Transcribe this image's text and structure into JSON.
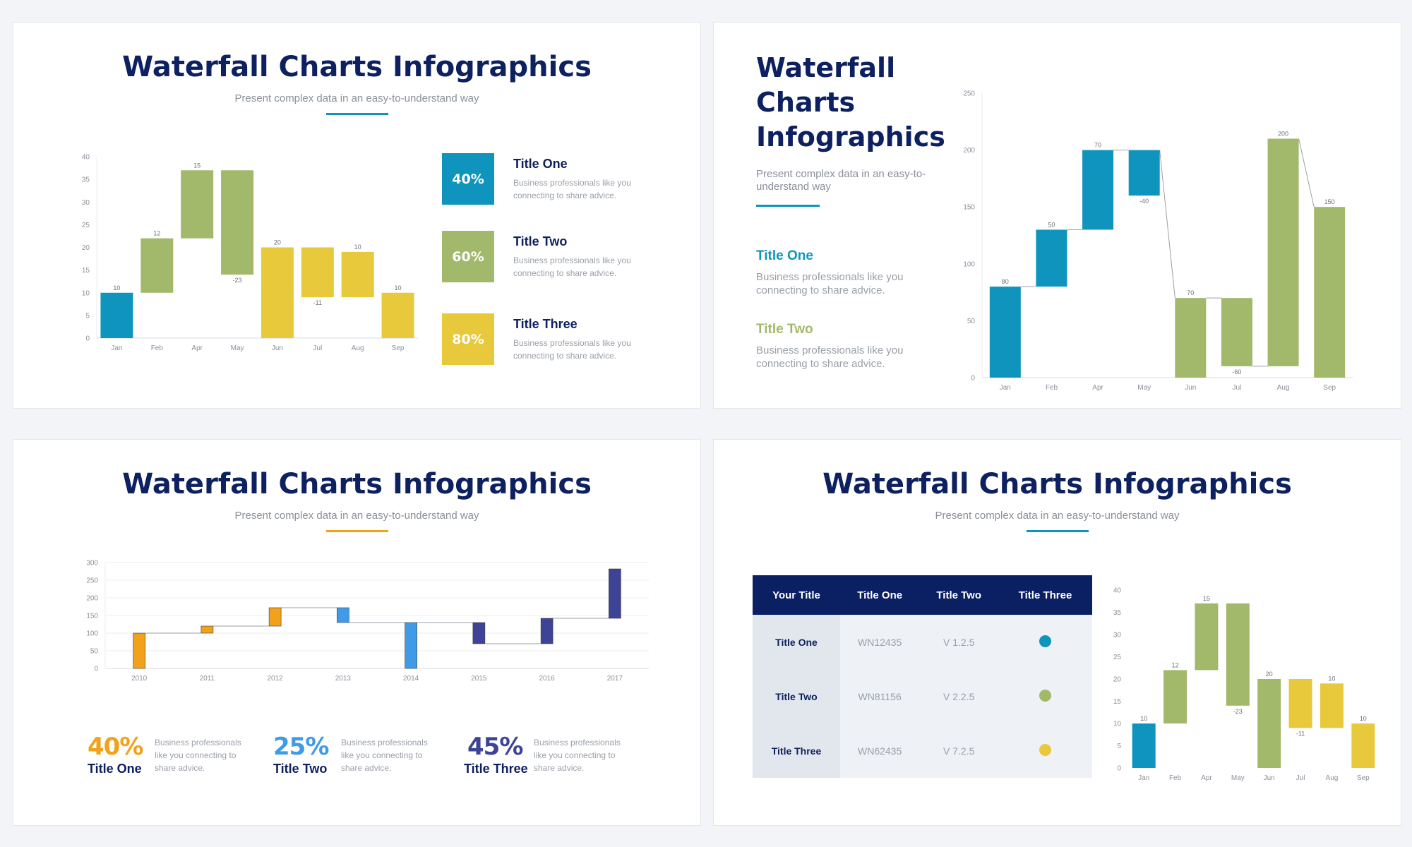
{
  "colors": {
    "navy": "#0d2060",
    "teal": "#0f95bd",
    "green": "#a2b86b",
    "yellow": "#e8c93b",
    "orange": "#f2a21a",
    "blue": "#3f9be8",
    "indigo": "#3d4397"
  },
  "panel1": {
    "title": "Waterfall Charts Infographics",
    "subtitle": "Present complex data in an easy-to-understand way",
    "legend": [
      {
        "pct": "40%",
        "title": "Title One",
        "desc": "Business professionals like you connecting to share advice.",
        "color": "#0f95bd"
      },
      {
        "pct": "60%",
        "title": "Title Two",
        "desc": "Business professionals like you connecting to share advice.",
        "color": "#a2b86b"
      },
      {
        "pct": "80%",
        "title": "Title Three",
        "desc": "Business professionals like you connecting to share advice.",
        "color": "#e8c93b"
      }
    ]
  },
  "panel2": {
    "title": "Waterfall Charts Infographics",
    "subtitle": "Present complex data in an easy-to-understand way",
    "items": [
      {
        "title": "Title One",
        "desc": "Business professionals like you connecting to share advice.",
        "color": "#0f95bd"
      },
      {
        "title": "Title Two",
        "desc": "Business professionals like you connecting to share advice.",
        "color": "#a2b86b"
      }
    ]
  },
  "panel3": {
    "title": "Waterfall Charts Infographics",
    "subtitle": "Present complex data in an easy-to-understand way",
    "stats": [
      {
        "pct": "40%",
        "label": "Title One",
        "desc": "Business professionals like you connecting to share advice.",
        "color": "#f2a21a"
      },
      {
        "pct": "25%",
        "label": "Title Two",
        "desc": "Business professionals like you connecting to share advice.",
        "color": "#3f9be8"
      },
      {
        "pct": "45%",
        "label": "Title Three",
        "desc": "Business professionals like you connecting to share advice.",
        "color": "#3d4397"
      }
    ]
  },
  "panel4": {
    "title": "Waterfall Charts Infographics",
    "subtitle": "Present complex data in an easy-to-understand way",
    "table": {
      "headers": [
        "Your Title",
        "Title One",
        "Title Two",
        "Title Three"
      ],
      "rows": [
        {
          "name": "Title One",
          "code": "WN12435",
          "version": "V 1.2.5",
          "dot": "#0f95bd"
        },
        {
          "name": "Title Two",
          "code": "WN81156",
          "version": "V 2.2.5",
          "dot": "#a2b86b"
        },
        {
          "name": "Title Three",
          "code": "WN62435",
          "version": "V 7.2.5",
          "dot": "#e8c93b"
        }
      ]
    }
  },
  "chart_data": [
    {
      "id": "chart1",
      "type": "bar",
      "categories": [
        "Jan",
        "Feb",
        "Apr",
        "May",
        "Jun",
        "Jul",
        "Aug",
        "Sep"
      ],
      "yticks": [
        0,
        5,
        10,
        15,
        20,
        25,
        30,
        35,
        40
      ],
      "ylim": [
        0,
        40
      ],
      "bars": [
        {
          "low": 0,
          "high": 10,
          "label": "10",
          "color": "#0f95bd"
        },
        {
          "low": 10,
          "high": 22,
          "label": "12",
          "color": "#a2b86b"
        },
        {
          "low": 22,
          "high": 37,
          "label": "15",
          "color": "#a2b86b"
        },
        {
          "low": 14,
          "high": 37,
          "label": "-23",
          "color": "#a2b86b"
        },
        {
          "low": 0,
          "high": 20,
          "label": "20",
          "color": "#e8c93b"
        },
        {
          "low": 9,
          "high": 20,
          "label": "-11",
          "color": "#e8c93b"
        },
        {
          "low": 9,
          "high": 19,
          "label": "10",
          "color": "#e8c93b"
        },
        {
          "low": 0,
          "high": 10,
          "label": "10",
          "color": "#e8c93b"
        }
      ]
    },
    {
      "id": "chart2",
      "type": "bar",
      "categories": [
        "Jan",
        "Feb",
        "Apr",
        "May",
        "Jun",
        "Jul",
        "Aug",
        "Sep"
      ],
      "yticks": [
        0,
        50,
        100,
        150,
        200,
        250
      ],
      "ylim": [
        0,
        250
      ],
      "bars": [
        {
          "low": 0,
          "high": 80,
          "label": "80",
          "color": "#0f95bd"
        },
        {
          "low": 80,
          "high": 130,
          "label": "50",
          "color": "#0f95bd"
        },
        {
          "low": 130,
          "high": 200,
          "label": "70",
          "color": "#0f95bd"
        },
        {
          "low": 160,
          "high": 200,
          "label": "-40",
          "color": "#0f95bd"
        },
        {
          "low": 0,
          "high": 70,
          "label": "70",
          "color": "#a2b86b"
        },
        {
          "low": 10,
          "high": 70,
          "label": "-60",
          "color": "#a2b86b"
        },
        {
          "low": 10,
          "high": 210,
          "label": "200",
          "color": "#a2b86b"
        },
        {
          "low": 0,
          "high": 150,
          "label": "150",
          "color": "#a2b86b"
        }
      ]
    },
    {
      "id": "chart3",
      "type": "bar",
      "categories": [
        "2010",
        "2011",
        "2012",
        "2013",
        "2014",
        "2015",
        "2016",
        "2017"
      ],
      "yticks": [
        0,
        50,
        100,
        150,
        200,
        250,
        300
      ],
      "ylim": [
        0,
        300
      ],
      "bars": [
        {
          "low": 0,
          "high": 100,
          "label": "",
          "color": "#f2a21a"
        },
        {
          "low": 100,
          "high": 120,
          "label": "",
          "color": "#f2a21a"
        },
        {
          "low": 120,
          "high": 172,
          "label": "",
          "color": "#f2a21a"
        },
        {
          "low": 130,
          "high": 172,
          "label": "",
          "color": "#3f9be8"
        },
        {
          "low": 0,
          "high": 130,
          "label": "",
          "color": "#3f9be8"
        },
        {
          "low": 70,
          "high": 130,
          "label": "",
          "color": "#3d4397"
        },
        {
          "low": 70,
          "high": 142,
          "label": "",
          "color": "#3d4397"
        },
        {
          "low": 142,
          "high": 282,
          "label": "",
          "color": "#3d4397"
        }
      ]
    },
    {
      "id": "chart4",
      "type": "bar",
      "categories": [
        "Jan",
        "Feb",
        "Apr",
        "May",
        "Jun",
        "Jul",
        "Aug",
        "Sep"
      ],
      "yticks": [
        0,
        5,
        10,
        15,
        20,
        25,
        30,
        35,
        40
      ],
      "ylim": [
        0,
        40
      ],
      "bars": [
        {
          "low": 0,
          "high": 10,
          "label": "10",
          "color": "#0f95bd"
        },
        {
          "low": 10,
          "high": 22,
          "label": "12",
          "color": "#a2b86b"
        },
        {
          "low": 22,
          "high": 37,
          "label": "15",
          "color": "#a2b86b"
        },
        {
          "low": 14,
          "high": 37,
          "label": "-23",
          "color": "#a2b86b"
        },
        {
          "low": 0,
          "high": 20,
          "label": "20",
          "color": "#a2b86b"
        },
        {
          "low": 9,
          "high": 20,
          "label": "-11",
          "color": "#e8c93b"
        },
        {
          "low": 9,
          "high": 19,
          "label": "10",
          "color": "#e8c93b"
        },
        {
          "low": 0,
          "high": 10,
          "label": "10",
          "color": "#e8c93b"
        }
      ]
    }
  ]
}
